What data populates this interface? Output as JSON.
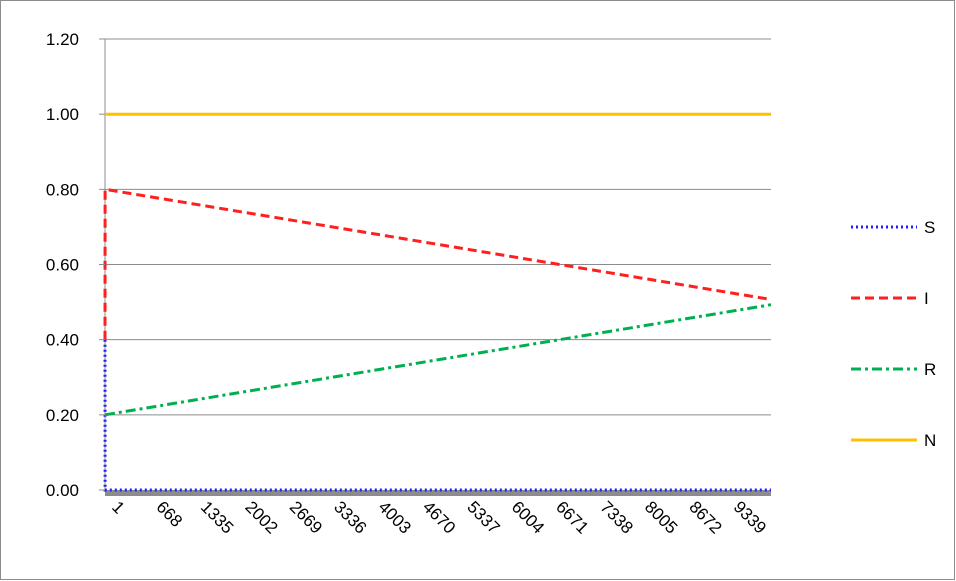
{
  "chart_data": {
    "type": "line",
    "title": "",
    "xlabel": "",
    "ylabel": "",
    "x_tick_labels": [
      "1",
      "668",
      "1335",
      "2002",
      "2669",
      "3336",
      "4003",
      "4670",
      "5337",
      "6004",
      "6671",
      "7338",
      "8005",
      "8672",
      "9339"
    ],
    "y_tick_labels": [
      "0.00",
      "0.20",
      "0.40",
      "0.60",
      "0.80",
      "1.00",
      "1.20"
    ],
    "ylim": [
      0,
      1.2
    ],
    "xlim": [
      1,
      10000
    ],
    "grid": true,
    "legend_position": "right",
    "series": [
      {
        "name": "S",
        "color": "#1f1fff",
        "style": "dotted",
        "x": [
          1,
          2,
          10000
        ],
        "y": [
          0.4,
          0.0,
          0.0
        ]
      },
      {
        "name": "I",
        "color": "#ff1f1f",
        "style": "dashed",
        "x": [
          1,
          2,
          10000
        ],
        "y": [
          0.4,
          0.8,
          0.507
        ]
      },
      {
        "name": "R",
        "color": "#00b050",
        "style": "dashdot",
        "x": [
          1,
          2,
          10000
        ],
        "y": [
          0.2,
          0.2,
          0.493
        ]
      },
      {
        "name": "N",
        "color": "#ffc000",
        "style": "solid",
        "x": [
          1,
          10000
        ],
        "y": [
          1.0,
          1.0
        ]
      }
    ]
  }
}
